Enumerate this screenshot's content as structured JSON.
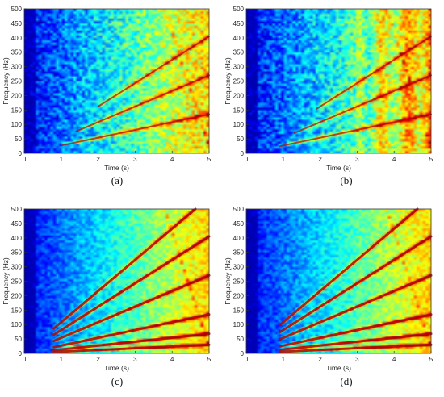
{
  "chart_data": [
    {
      "type": "heatmap",
      "caption": "(a)",
      "xlabel": "Time (s)",
      "ylabel": "Frequency (Hz)",
      "xlim": [
        0,
        5
      ],
      "ylim": [
        0,
        500
      ],
      "x_ticks": [
        0,
        1,
        2,
        3,
        4,
        5
      ],
      "y_ticks": [
        0,
        50,
        100,
        150,
        200,
        250,
        300,
        350,
        400,
        450,
        500
      ],
      "colormap": "jet",
      "ridges": [
        {
          "harmonic": 1,
          "start_time": 1.0,
          "end_freq": 135
        },
        {
          "harmonic": 2,
          "start_time": 1.4,
          "end_freq": 270
        },
        {
          "harmonic": 3,
          "start_time": 2.0,
          "end_freq": 405
        }
      ]
    },
    {
      "type": "heatmap",
      "caption": "(b)",
      "xlabel": "Time (s)",
      "ylabel": "Frequency (Hz)",
      "xlim": [
        0,
        5
      ],
      "ylim": [
        0,
        500
      ],
      "x_ticks": [
        0,
        1,
        2,
        3,
        4,
        5
      ],
      "y_ticks": [
        0,
        50,
        100,
        150,
        200,
        250,
        300,
        350,
        400,
        450,
        500
      ],
      "colormap": "jet",
      "ridges": [
        {
          "harmonic": 1,
          "start_time": 0.9,
          "end_freq": 135
        },
        {
          "harmonic": 2,
          "start_time": 1.3,
          "end_freq": 270
        },
        {
          "harmonic": 3,
          "start_time": 1.9,
          "end_freq": 405
        }
      ]
    },
    {
      "type": "heatmap",
      "caption": "(c)",
      "xlabel": "Time (s)",
      "ylabel": "Frequency (Hz)",
      "xlim": [
        0,
        5
      ],
      "ylim": [
        0,
        500
      ],
      "x_ticks": [
        0,
        1,
        2,
        3,
        4,
        5
      ],
      "y_ticks": [
        0,
        50,
        100,
        150,
        200,
        250,
        300,
        350,
        400,
        450,
        500
      ],
      "colormap": "jet",
      "ridges": [
        {
          "harmonic": 0.25,
          "start_time": 0.8,
          "end_freq": 30
        },
        {
          "harmonic": 0.5,
          "start_time": 0.8,
          "end_freq": 68
        },
        {
          "harmonic": 1,
          "start_time": 0.8,
          "end_freq": 135
        },
        {
          "harmonic": 2,
          "start_time": 0.8,
          "end_freq": 270
        },
        {
          "harmonic": 3,
          "start_time": 0.8,
          "end_freq": 405
        },
        {
          "harmonic": 4,
          "start_time": 0.8,
          "end_freq": 540
        }
      ]
    },
    {
      "type": "heatmap",
      "caption": "(d)",
      "xlabel": "Time (s)",
      "ylabel": "Frequency (Hz)",
      "xlim": [
        0,
        5
      ],
      "ylim": [
        0,
        500
      ],
      "x_ticks": [
        0,
        1,
        2,
        3,
        4,
        5
      ],
      "y_ticks": [
        0,
        50,
        100,
        150,
        200,
        250,
        300,
        350,
        400,
        450,
        500
      ],
      "colormap": "jet",
      "ridges": [
        {
          "harmonic": 0.25,
          "start_time": 0.9,
          "end_freq": 30
        },
        {
          "harmonic": 0.5,
          "start_time": 0.9,
          "end_freq": 68
        },
        {
          "harmonic": 1,
          "start_time": 0.9,
          "end_freq": 135
        },
        {
          "harmonic": 2,
          "start_time": 0.9,
          "end_freq": 270
        },
        {
          "harmonic": 3,
          "start_time": 0.9,
          "end_freq": 405
        },
        {
          "harmonic": 4,
          "start_time": 0.9,
          "end_freq": 540
        }
      ]
    }
  ]
}
